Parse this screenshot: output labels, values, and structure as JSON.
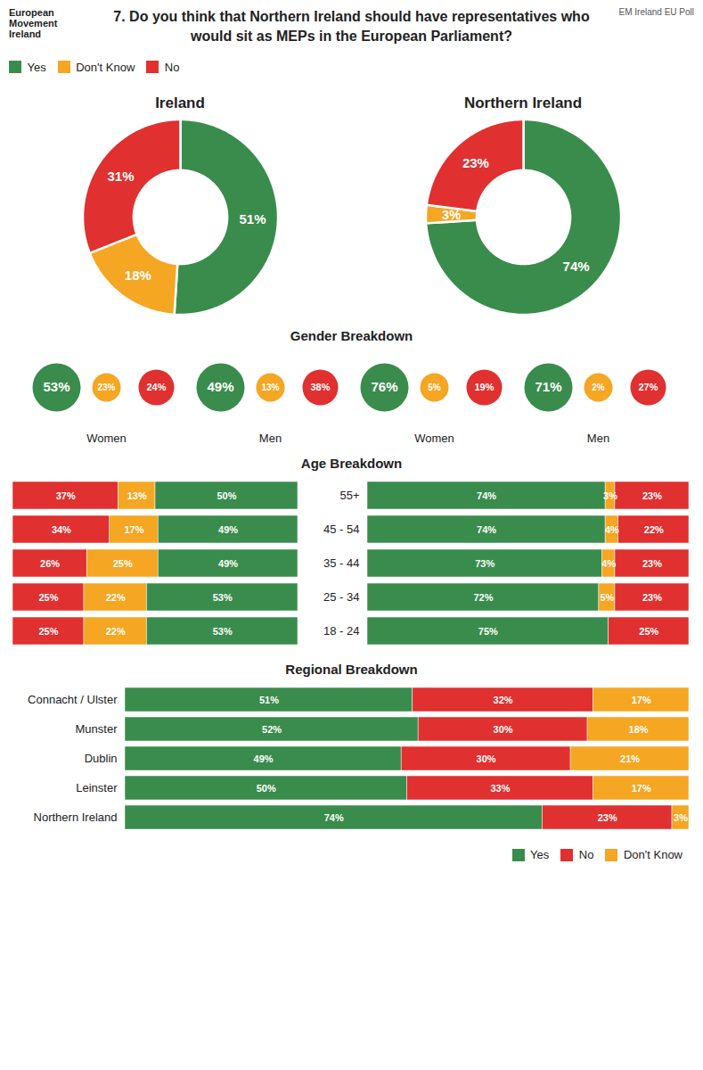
{
  "title": "7.  Do you think that Northern Ireland should have representatives who would sit as MEPs in the European Parliament?",
  "annotations": [
    "European Movement Ireland",
    "EM Ireland EU Poll"
  ],
  "chart_data": [
    {
      "type": "donut",
      "title": "Ireland",
      "categories": [
        "Yes",
        "Don't Know",
        "No"
      ],
      "values": [
        51,
        18,
        31
      ],
      "value_labels": [
        "51%",
        "18%",
        "31%"
      ],
      "colors": [
        "#3a8c4c",
        "#f5a623",
        "#e03030"
      ],
      "data_labels": true,
      "legend": "top-left"
    },
    {
      "type": "donut",
      "title": "Northern Ireland",
      "categories": [
        "Yes",
        "Don't Know",
        "No"
      ],
      "values": [
        74,
        3,
        23
      ],
      "value_labels": [
        "74%",
        "3%",
        "23%"
      ],
      "colors": [
        "#3a8c4c",
        "#f5a623",
        "#e03030"
      ],
      "data_labels": true
    },
    {
      "type": "bubble",
      "title": "Gender Breakdown",
      "categories": [
        "Women",
        "Men",
        "Women",
        "Men"
      ],
      "series": [
        {
          "name": "Yes",
          "color": "#3a8c4c",
          "values": [
            53,
            49,
            76,
            71
          ],
          "value_labels": [
            "53%",
            "49%",
            "76%",
            "71%"
          ]
        },
        {
          "name": "Don't Know",
          "color": "#f5a623",
          "values": [
            23,
            13,
            5,
            2
          ],
          "value_labels": [
            "23%",
            "13%",
            "5%",
            "2%"
          ]
        },
        {
          "name": "No",
          "color": "#e03030",
          "values": [
            24,
            38,
            19,
            27
          ],
          "value_labels": [
            "24%",
            "38%",
            "19%",
            "27%"
          ]
        }
      ],
      "data_labels": true
    },
    {
      "type": "bar",
      "title": "Age Breakdown",
      "orientation": "horizontal",
      "stacked": true,
      "categories": [
        "55+",
        "45 - 54",
        "35 - 44",
        "25 - 34",
        "18 - 24"
      ],
      "series": [
        {
          "name": "No",
          "color": "#e03030",
          "values": [
            37,
            34,
            26,
            25,
            25
          ],
          "value_labels": [
            "37%",
            "34%",
            "26%",
            "25%",
            "25%"
          ]
        },
        {
          "name": "Don't Know",
          "color": "#f5a623",
          "values": [
            13,
            17,
            25,
            22,
            22
          ],
          "value_labels": [
            "13%",
            "17%",
            "25%",
            "22%",
            "22%"
          ]
        },
        {
          "name": "Yes",
          "color": "#3a8c4c",
          "values": [
            50,
            49,
            49,
            53,
            53
          ],
          "value_labels": [
            "50%",
            "49%",
            "49%",
            "53%",
            "53%"
          ]
        }
      ],
      "xlim": [
        0,
        100
      ],
      "tick_labels": false,
      "data_labels": true
    },
    {
      "type": "bar",
      "orientation": "horizontal",
      "stacked": true,
      "categories": [
        "55+",
        "45 - 54",
        "35 - 44",
        "25 - 34",
        "18 - 24"
      ],
      "series": [
        {
          "name": "Yes",
          "color": "#3a8c4c",
          "values": [
            74,
            74,
            73,
            72,
            75
          ],
          "value_labels": [
            "74%",
            "74%",
            "73%",
            "72%",
            "75%"
          ]
        },
        {
          "name": "Don't Know",
          "color": "#f5a623",
          "values": [
            3,
            4,
            4,
            5,
            0
          ],
          "value_labels": [
            "3%",
            "4%",
            "4%",
            "5%",
            null
          ]
        },
        {
          "name": "No",
          "color": "#e03030",
          "values": [
            23,
            22,
            23,
            23,
            25
          ],
          "value_labels": [
            "23%",
            "22%",
            "23%",
            "23%",
            "25%"
          ]
        }
      ],
      "xlim": [
        0,
        100
      ],
      "tick_labels": "y",
      "data_labels": true
    },
    {
      "type": "bar",
      "title": "Regional Breakdown",
      "orientation": "horizontal",
      "stacked": true,
      "categories": [
        "Connacht / Ulster",
        "Munster",
        "Dublin",
        "Leinster",
        "Northern Ireland"
      ],
      "series": [
        {
          "name": "Yes",
          "color": "#3a8c4c",
          "values": [
            51,
            52,
            49,
            50,
            74
          ],
          "value_labels": [
            "51%",
            "52%",
            "49%",
            "50%",
            "74%"
          ]
        },
        {
          "name": "No",
          "color": "#e03030",
          "values": [
            32,
            30,
            30,
            33,
            23
          ],
          "value_labels": [
            "32%",
            "30%",
            "30%",
            "33%",
            "23%"
          ]
        },
        {
          "name": "Don't Know",
          "color": "#f5a623",
          "values": [
            17,
            18,
            21,
            17,
            3
          ],
          "value_labels": [
            "17%",
            "18%",
            "21%",
            "17%",
            "3%"
          ]
        }
      ],
      "xlim": [
        0,
        100
      ],
      "tick_labels": "y",
      "data_labels": true,
      "legend": "bottom-right"
    }
  ]
}
